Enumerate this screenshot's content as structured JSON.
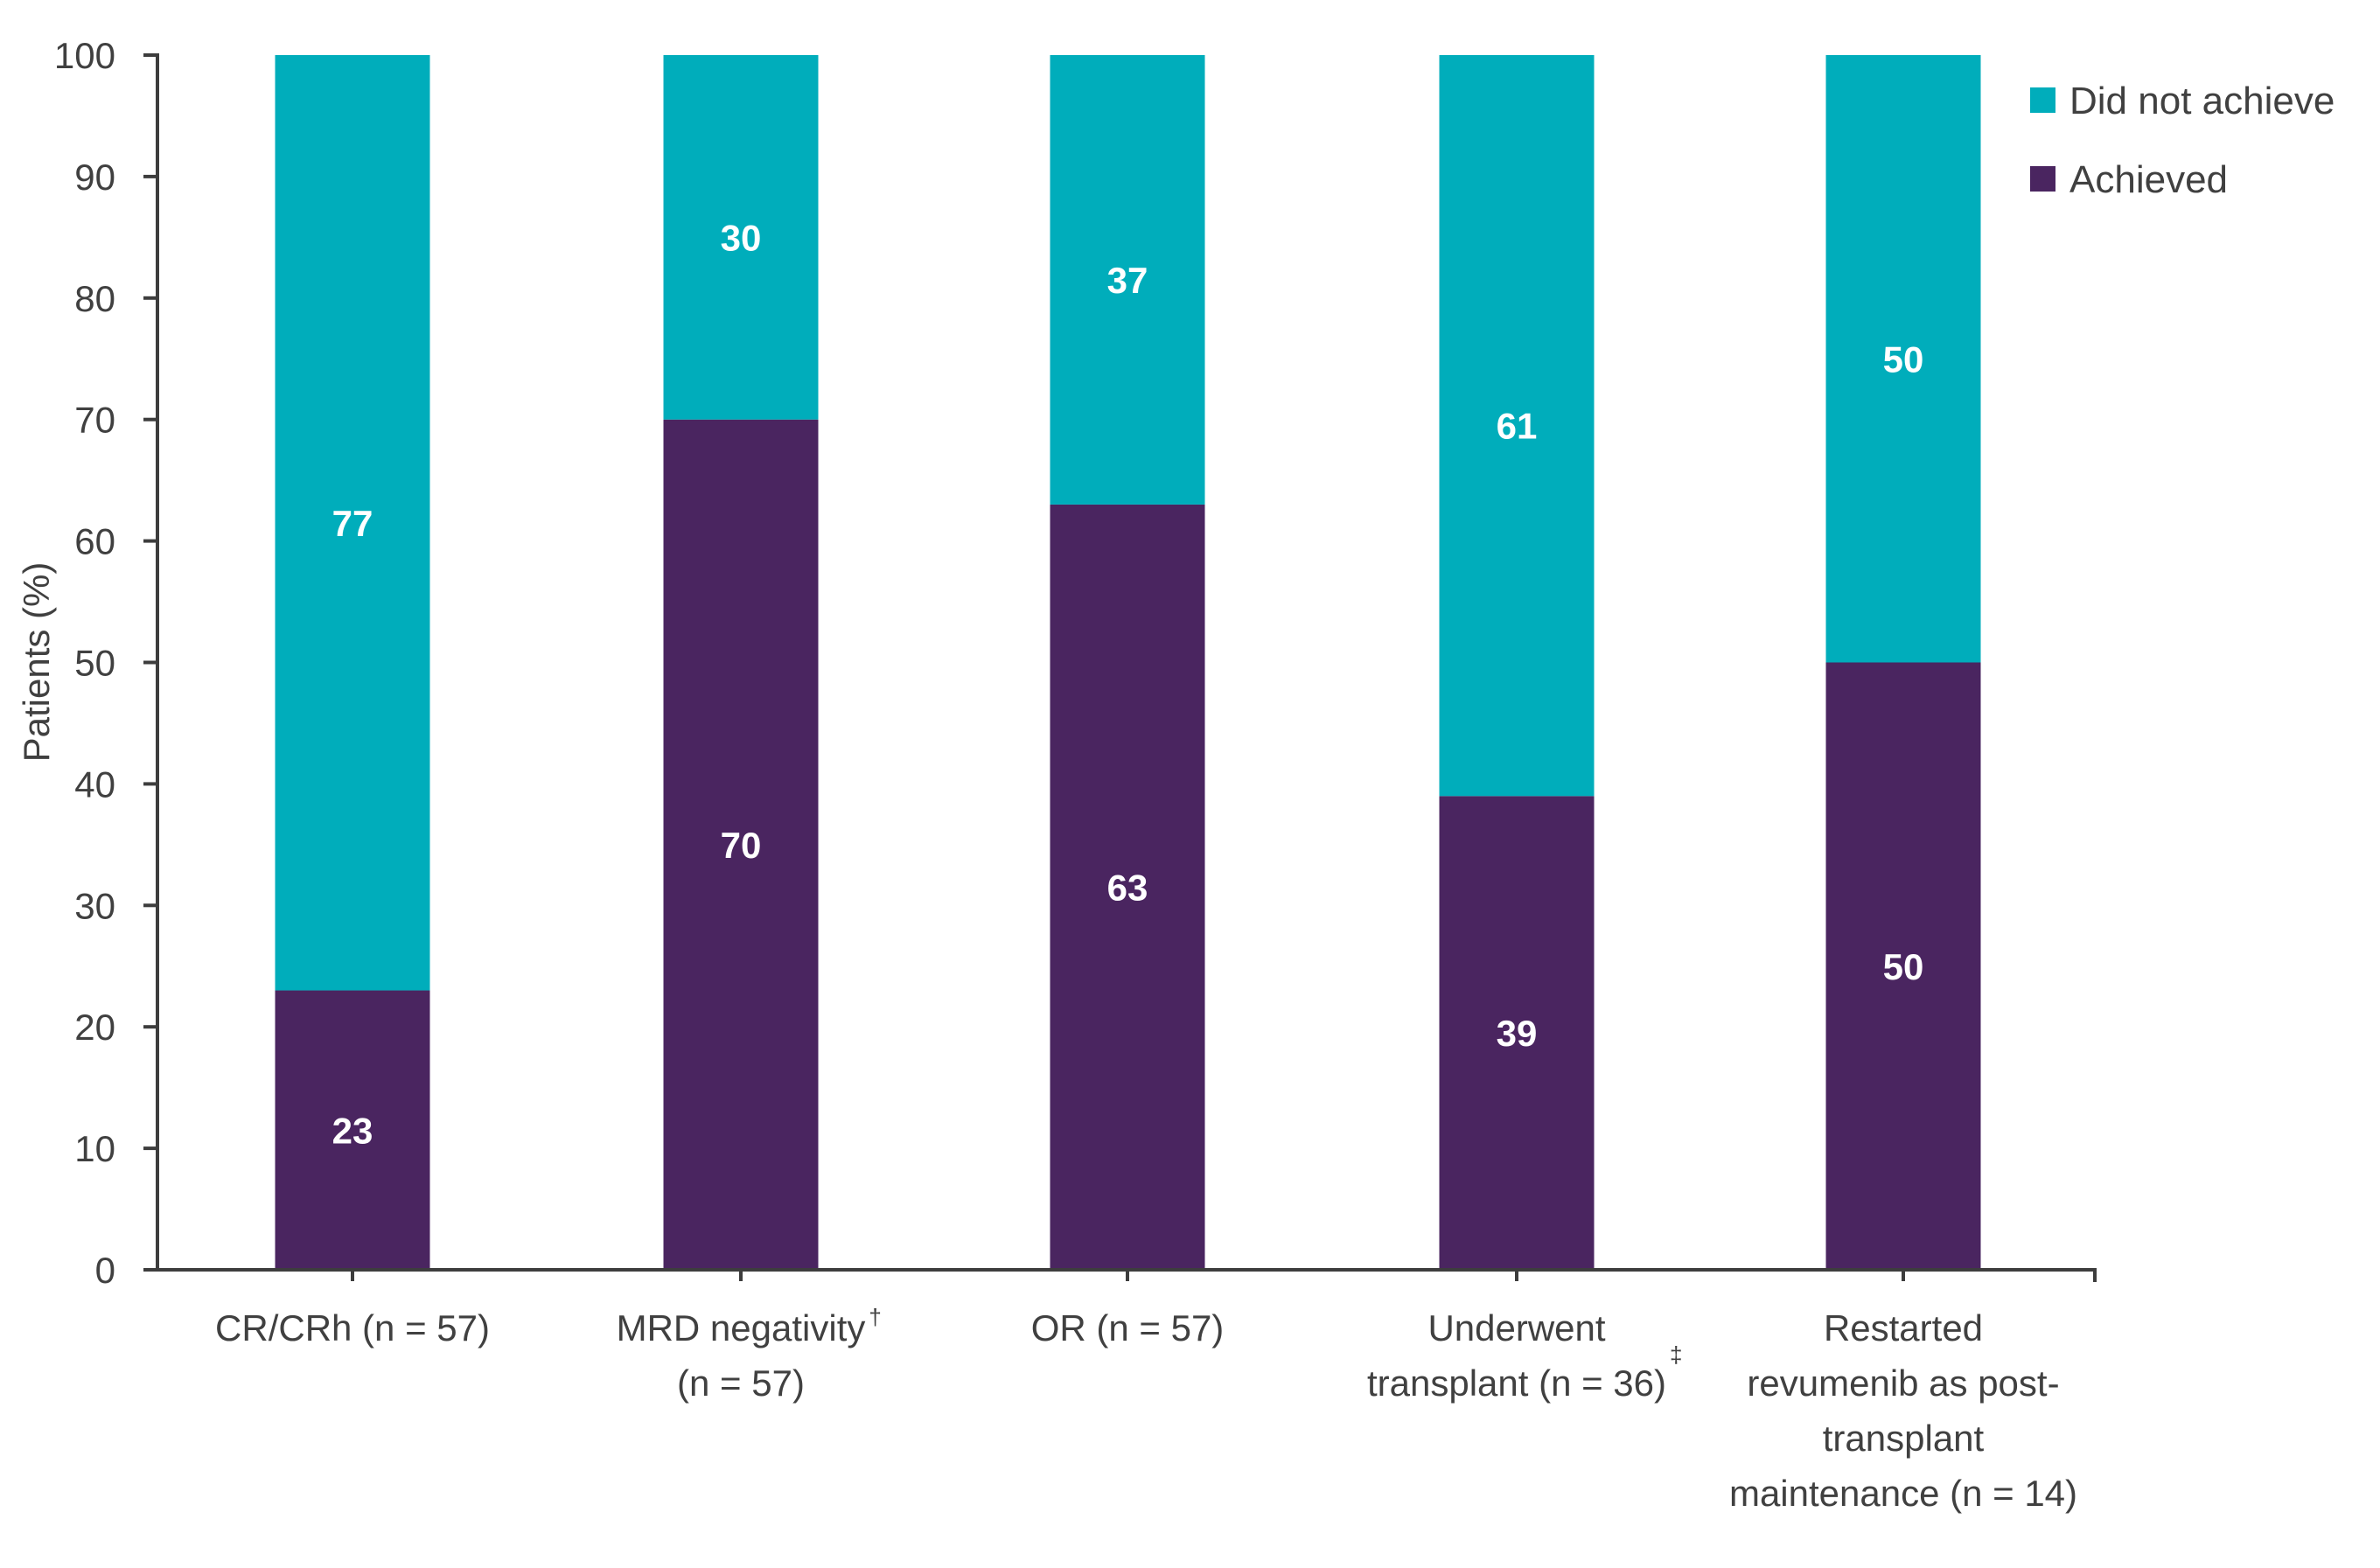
{
  "chart_data": {
    "type": "bar",
    "stacked": true,
    "title": "",
    "xlabel": "",
    "ylabel": "Patients (%)",
    "ylim": [
      0,
      100
    ],
    "yticks": [
      0,
      10,
      20,
      30,
      40,
      50,
      60,
      70,
      80,
      90,
      100
    ],
    "grid": false,
    "legend_position": "top-right",
    "categories": [
      {
        "lines": [
          "CR/CRh (n = 57)"
        ],
        "footnote": ""
      },
      {
        "lines": [
          "MRD negativity",
          "(n = 57)"
        ],
        "footnote": "†"
      },
      {
        "lines": [
          "OR (n = 57)"
        ],
        "footnote": ""
      },
      {
        "lines": [
          "Underwent",
          "transplant (n = 36)"
        ],
        "footnote": "‡"
      },
      {
        "lines": [
          "Restarted",
          "revumenib as post-",
          "transplant",
          "maintenance (n = 14)"
        ],
        "footnote": ""
      }
    ],
    "series": [
      {
        "name": "Achieved",
        "color": "#4A2560",
        "values": [
          23,
          70,
          63,
          39,
          50
        ]
      },
      {
        "name": "Did not achieve",
        "color": "#00ADBB",
        "values": [
          77,
          30,
          37,
          61,
          50
        ]
      }
    ],
    "legend": [
      {
        "name": "Did not achieve",
        "color": "#00ADBB"
      },
      {
        "name": "Achieved",
        "color": "#4A2560"
      }
    ],
    "axis_color": "#3D3D3D",
    "text_color": "#404040",
    "data_label_color": "#FFFFFF"
  }
}
